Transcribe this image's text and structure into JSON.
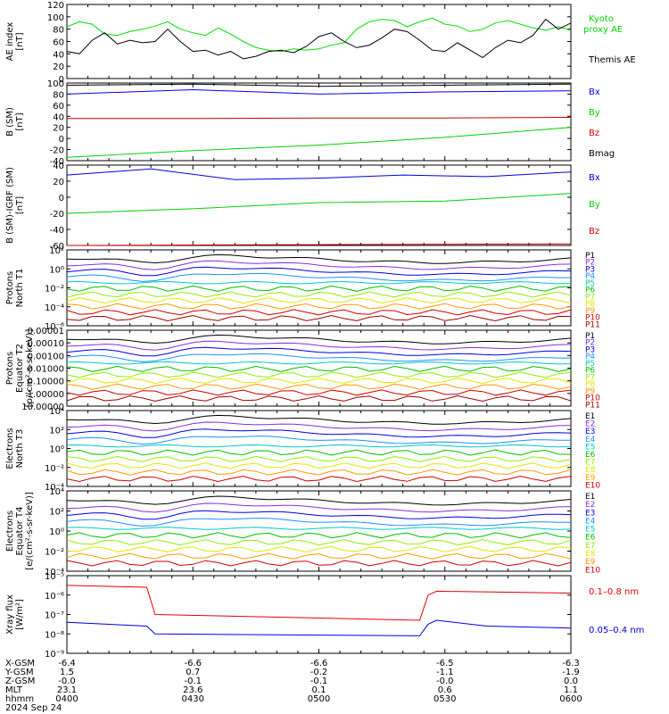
{
  "chart_data": [
    {
      "type": "line",
      "ylabel": "AE index\n[nT]",
      "yticks": [
        "0",
        "20",
        "40",
        "60",
        "80",
        "100",
        "120"
      ],
      "ylim": [
        0,
        120
      ],
      "series": [
        {
          "name": "Kyoto proxy AE",
          "color": "#00e000",
          "values": [
            [
              0,
              84
            ],
            [
              3,
              92
            ],
            [
              6,
              88
            ],
            [
              9,
              72
            ],
            [
              12,
              70
            ],
            [
              15,
              76
            ],
            [
              18,
              80
            ],
            [
              21,
              85
            ],
            [
              24,
              92
            ],
            [
              27,
              80
            ],
            [
              30,
              74
            ],
            [
              33,
              70
            ],
            [
              36,
              82
            ],
            [
              39,
              72
            ],
            [
              42,
              60
            ],
            [
              45,
              50
            ],
            [
              48,
              46
            ],
            [
              51,
              44
            ],
            [
              54,
              48
            ],
            [
              57,
              46
            ],
            [
              60,
              48
            ],
            [
              63,
              54
            ],
            [
              66,
              58
            ],
            [
              69,
              80
            ],
            [
              72,
              92
            ],
            [
              75,
              96
            ],
            [
              78,
              94
            ],
            [
              81,
              84
            ],
            [
              84,
              92
            ],
            [
              87,
              98
            ],
            [
              90,
              88
            ],
            [
              93,
              85
            ],
            [
              96,
              76
            ],
            [
              99,
              80
            ],
            [
              102,
              90
            ],
            [
              105,
              94
            ],
            [
              108,
              88
            ],
            [
              111,
              82
            ],
            [
              114,
              78
            ],
            [
              117,
              84
            ],
            [
              120,
              78
            ]
          ]
        },
        {
          "name": "Themis AE",
          "color": "#000000",
          "values": [
            [
              0,
              44
            ],
            [
              3,
              40
            ],
            [
              6,
              62
            ],
            [
              9,
              74
            ],
            [
              12,
              56
            ],
            [
              15,
              62
            ],
            [
              18,
              58
            ],
            [
              21,
              60
            ],
            [
              24,
              80
            ],
            [
              27,
              60
            ],
            [
              30,
              44
            ],
            [
              33,
              46
            ],
            [
              36,
              38
            ],
            [
              39,
              44
            ],
            [
              42,
              32
            ],
            [
              45,
              36
            ],
            [
              48,
              44
            ],
            [
              51,
              46
            ],
            [
              54,
              42
            ],
            [
              57,
              52
            ],
            [
              60,
              68
            ],
            [
              63,
              74
            ],
            [
              66,
              60
            ],
            [
              69,
              50
            ],
            [
              72,
              54
            ],
            [
              75,
              66
            ],
            [
              78,
              80
            ],
            [
              81,
              76
            ],
            [
              84,
              62
            ],
            [
              87,
              46
            ],
            [
              90,
              44
            ],
            [
              93,
              58
            ],
            [
              96,
              46
            ],
            [
              99,
              34
            ],
            [
              102,
              50
            ],
            [
              105,
              62
            ],
            [
              108,
              58
            ],
            [
              111,
              70
            ],
            [
              114,
              96
            ],
            [
              117,
              80
            ],
            [
              120,
              90
            ]
          ]
        }
      ]
    },
    {
      "type": "line",
      "ylabel": "B (SM)\n[nT]",
      "yticks": [
        "-40",
        "-20",
        "0",
        "20",
        "40",
        "60",
        "80",
        "100"
      ],
      "ylim": [
        -40,
        100
      ],
      "series": [
        {
          "name": "Bx",
          "color": "#0000e0",
          "values": [
            [
              0,
              80
            ],
            [
              30,
              88
            ],
            [
              60,
              80
            ],
            [
              90,
              84
            ],
            [
              120,
              86
            ]
          ]
        },
        {
          "name": "By",
          "color": "#00d000",
          "values": [
            [
              0,
              -34
            ],
            [
              30,
              -22
            ],
            [
              60,
              -12
            ],
            [
              90,
              2
            ],
            [
              120,
              20
            ]
          ]
        },
        {
          "name": "Bz",
          "color": "#d00000",
          "values": [
            [
              0,
              36
            ],
            [
              30,
              36
            ],
            [
              60,
              37
            ],
            [
              90,
              37
            ],
            [
              120,
              38
            ]
          ]
        },
        {
          "name": "Bmag",
          "color": "#000000",
          "values": [
            [
              0,
              96
            ],
            [
              30,
              98
            ],
            [
              60,
              94
            ],
            [
              90,
              96
            ],
            [
              120,
              98
            ]
          ]
        }
      ]
    },
    {
      "type": "line",
      "ylabel": "B (SM)-IGRF (SM)\n[nT]",
      "yticks": [
        "-60",
        "-40",
        "-20",
        "0",
        "20",
        "40"
      ],
      "ylim": [
        -60,
        45
      ],
      "series": [
        {
          "name": "Bx",
          "color": "#0000e0",
          "values": [
            [
              0,
              32
            ],
            [
              20,
              40
            ],
            [
              40,
              26
            ],
            [
              60,
              28
            ],
            [
              80,
              32
            ],
            [
              100,
              30
            ],
            [
              120,
              36
            ]
          ]
        },
        {
          "name": "By",
          "color": "#00d000",
          "values": [
            [
              0,
              -18
            ],
            [
              30,
              -12
            ],
            [
              60,
              -4
            ],
            [
              90,
              -2
            ],
            [
              120,
              8
            ]
          ]
        },
        {
          "name": "Bz",
          "color": "#d00000",
          "values": [
            [
              0,
              -60
            ],
            [
              60,
              -59
            ],
            [
              120,
              -58
            ]
          ]
        }
      ]
    },
    {
      "type": "line",
      "ylabel": "Protons\nNorth T1",
      "yticks": [
        "10⁻⁶",
        "10⁻⁴",
        "10⁻²",
        "10⁰",
        "10²"
      ],
      "log": true,
      "series_labels": [
        "P1",
        "P2",
        "P3",
        "P4",
        "P5",
        "P6",
        "P7",
        "P8",
        "P9",
        "P10",
        "P11"
      ],
      "series_colors": [
        "#000000",
        "#8a2be2",
        "#0000e0",
        "#1e90ff",
        "#00c8c8",
        "#00c000",
        "#90ee00",
        "#e6e600",
        "#ff9900",
        "#d00000",
        "#a00000"
      ]
    },
    {
      "type": "line",
      "ylabel": "Protons\nEquator T2\n[p/(cm²-s-sr-keV)]",
      "yticks": [
        "10.00000",
        "1.00000",
        "0.10000",
        "0.01000",
        "0.00100",
        "0.00010",
        "0.00001"
      ],
      "log": true,
      "series_labels": [
        "P1",
        "P2",
        "P3",
        "P4",
        "P5",
        "P6",
        "P7",
        "P8",
        "P9",
        "P10",
        "P11"
      ],
      "series_colors": [
        "#000000",
        "#8a2be2",
        "#0000e0",
        "#1e90ff",
        "#00c8c8",
        "#00c000",
        "#90ee00",
        "#e6e600",
        "#ff9900",
        "#d00000",
        "#a00000"
      ]
    },
    {
      "type": "line",
      "ylabel": "Electrons\nNorth T3",
      "yticks": [
        "10⁻⁴",
        "10⁻²",
        "10⁰",
        "10²",
        "10⁴"
      ],
      "log": true,
      "series_labels": [
        "E1",
        "E2",
        "E3",
        "E4",
        "E5",
        "E6",
        "E7",
        "E8",
        "E9",
        "E10"
      ],
      "series_colors": [
        "#000000",
        "#8a2be2",
        "#0000e0",
        "#1e90ff",
        "#00c8c8",
        "#00c000",
        "#90ee00",
        "#e6e600",
        "#ff9900",
        "#d00000"
      ]
    },
    {
      "type": "line",
      "ylabel": "Electrons\nEquator T4\n[e/(cm²-s-sr-keV)]",
      "yticks": [
        "10⁻⁴",
        "10⁻²",
        "10⁰",
        "10²",
        "10⁴"
      ],
      "log": true,
      "series_labels": [
        "E1",
        "E2",
        "E3",
        "E4",
        "E5",
        "E6",
        "E7",
        "E8",
        "E9",
        "E10"
      ],
      "series_colors": [
        "#000000",
        "#8a2be2",
        "#0000e0",
        "#1e90ff",
        "#00c8c8",
        "#00c000",
        "#90ee00",
        "#e6e600",
        "#ff9900",
        "#d00000"
      ]
    },
    {
      "type": "line",
      "ylabel": "Xray flux\n[W/m²]",
      "yticks": [
        "10⁻⁹",
        "10⁻⁸",
        "10⁻⁷",
        "10⁻⁶",
        "10⁻⁵"
      ],
      "log": true,
      "series": [
        {
          "name": "0.1–0.8 nm",
          "color": "#e00000",
          "values": [
            [
              0,
              -5.5
            ],
            [
              19,
              -5.6
            ],
            [
              21,
              -7.0
            ],
            [
              84,
              -7.3
            ],
            [
              86,
              -6.0
            ],
            [
              88,
              -5.8
            ],
            [
              120,
              -5.9
            ]
          ]
        },
        {
          "name": "0.05–0.4 nm",
          "color": "#0000e0",
          "values": [
            [
              0,
              -7.4
            ],
            [
              19,
              -7.6
            ],
            [
              21,
              -8.0
            ],
            [
              84,
              -8.1
            ],
            [
              86,
              -7.5
            ],
            [
              88,
              -7.3
            ],
            [
              100,
              -7.6
            ],
            [
              120,
              -7.7
            ]
          ]
        }
      ]
    }
  ],
  "ephemeris": {
    "row_labels": [
      "X-GSM",
      "Y-GSM",
      "Z-GSM",
      "MLT",
      "hhmm"
    ],
    "columns": [
      {
        "values": [
          "-6.4",
          "1.5",
          "-0.0",
          "23.1",
          "0400"
        ]
      },
      {
        "values": [
          "-6.6",
          "0.7",
          "-0.1",
          "23.6",
          "0430"
        ]
      },
      {
        "values": [
          "-6.6",
          "-0.2",
          "-0.1",
          "0.1",
          "0500"
        ]
      },
      {
        "values": [
          "-6.5",
          "-1.1",
          "-0.0",
          "0.6",
          "0530"
        ]
      },
      {
        "values": [
          "-6.3",
          "-1.9",
          "0.0",
          "1.1",
          "0600"
        ]
      }
    ],
    "date": "2024 Sep 24"
  },
  "legend_text": {
    "ae": [
      "Kyoto",
      "proxy AE",
      "Themis AE"
    ],
    "b": [
      "Bx",
      "By",
      "Bz",
      "Bmag"
    ],
    "dbi": [
      "Bx",
      "By",
      "Bz"
    ],
    "xray": [
      "0.1–0.8 nm",
      "0.05–0.4 nm"
    ]
  }
}
